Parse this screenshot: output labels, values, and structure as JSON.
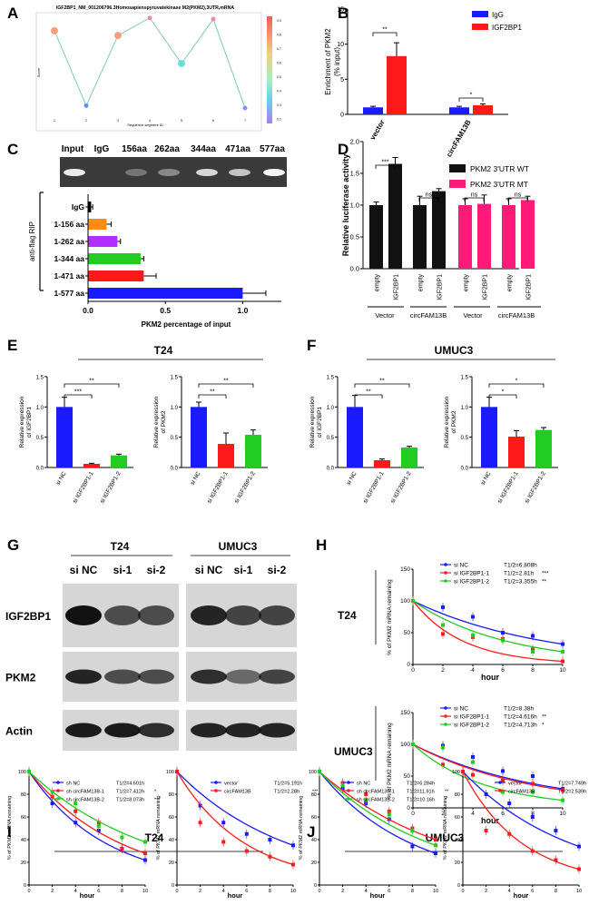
{
  "panels": {
    "A": {
      "letter": "A",
      "title": "IGF2BP1_NM_001206796.3Homosapienspyruvatekinase M2(PKM2),3UTR,mRNA",
      "xlabel": "Sequence segment ID",
      "ylabel": "Score",
      "colorbar_ticks": [
        "0.9",
        "0.8",
        "0.7",
        "0.6",
        "0.5",
        "0.4",
        "0.3",
        "0.2"
      ]
    },
    "B": {
      "letter": "B",
      "ylabel": "Enrichment of PKM2 (% input)",
      "legend": [
        "IgG",
        "IGF2BP1"
      ],
      "groups": [
        "vector",
        "circFAM13B"
      ],
      "sig": [
        "**",
        "*"
      ],
      "yticks": [
        "0",
        "5",
        "10",
        "15"
      ]
    },
    "C": {
      "letter": "C",
      "gel_labels": [
        "Input",
        "IgG",
        "156aa",
        "262aa",
        "344aa",
        "471aa",
        "577aa"
      ],
      "side_label": "anti-flag RIP",
      "xlabel": "PKM2 percentage of input",
      "xticks": [
        "0.0",
        "0.5",
        "1.0"
      ]
    },
    "D": {
      "letter": "D",
      "ylabel": "Relative luciferase activity",
      "legend": [
        "PKM2 3'UTR WT",
        "PKM2 3'UTR MT"
      ],
      "bar_labels": [
        "empty",
        "IGF2BP1",
        "empty",
        "IGF2BP1",
        "empty",
        "IGF2BP1",
        "empty",
        "IGF2BP1"
      ],
      "group_labels": [
        "Vector",
        "circFAM13B",
        "Vector",
        "circFAM13B"
      ],
      "sig": [
        "***",
        "ns",
        "ns",
        "ns"
      ],
      "yticks": [
        "0.0",
        "0.5",
        "1.0",
        "1.5",
        "2.0"
      ]
    },
    "E": {
      "letter": "E",
      "cell": "T24",
      "ylabels": [
        "Relative expression of IGF2BP1",
        "Relative expression of PKM2"
      ],
      "cats": [
        "si NC",
        "si IGF2BP1-1",
        "si IGF2BP1-2"
      ],
      "sig1": [
        "***",
        "**"
      ],
      "sig2": [
        "**",
        "**"
      ],
      "yticks": [
        "0.0",
        "0.5",
        "1.0",
        "1.5"
      ]
    },
    "F": {
      "letter": "F",
      "cell": "UMUC3",
      "ylabels": [
        "Relative expression of IGF2BP1",
        "Relative expression of PKM2"
      ],
      "cats": [
        "si NC",
        "si IGF2BP1-1",
        "si IGF2BP1-2"
      ],
      "sig1": [
        "**",
        "**"
      ],
      "sig2": [
        "*",
        "*"
      ],
      "yticks": [
        "0.0",
        "0.5",
        "1.0",
        "1.5"
      ]
    },
    "G": {
      "letter": "G",
      "cells": [
        "T24",
        "UMUC3"
      ],
      "lanes": [
        "si NC",
        "si-1",
        "si-2",
        "si NC",
        "si-1",
        "si-2"
      ],
      "rows": [
        "IGF2BP1",
        "PKM2",
        "Actin"
      ]
    },
    "H": {
      "letter": "H",
      "rows": [
        "T24",
        "UMUC3"
      ],
      "ylabel": "% of PKM2 mRNA remaining",
      "xlabel": "hour",
      "legend_t24": [
        {
          "name": "si NC",
          "half": "T1/2=6.808h",
          "sig": ""
        },
        {
          "name": "si IGF2BP1-1",
          "half": "T1/2=2.81h",
          "sig": "***"
        },
        {
          "name": "si IGF2BP1-2",
          "half": "T1/2=3.355h",
          "sig": "**"
        }
      ],
      "legend_umuc3": [
        {
          "name": "si NC",
          "half": "T1/2=8.38h",
          "sig": ""
        },
        {
          "name": "si IGF2BP1-1",
          "half": "T1/2=4.616h",
          "sig": "**"
        },
        {
          "name": "si IGF2BP1-2",
          "half": "T1/2=4.713h",
          "sig": "*"
        }
      ],
      "xticks": [
        "0",
        "2",
        "4",
        "6",
        "8",
        "10"
      ],
      "yticks": [
        "0",
        "50",
        "100",
        "150"
      ]
    },
    "I": {
      "letter": "I",
      "cell": "T24",
      "ylabel": "% of PKM2 mRNA remaining",
      "xlabel": "hour",
      "legend_sh": [
        {
          "name": "sh NC",
          "half": "T1/2=4.601h",
          "sig": ""
        },
        {
          "name": "sh circFAM13B-1",
          "half": "T1/2=7.412h",
          "sig": "*"
        },
        {
          "name": "sh circFAM13B-2",
          "half": "T1/2=8.073h",
          "sig": "***"
        }
      ],
      "legend_ov": [
        {
          "name": "vector",
          "half": "T1/2=5.191h",
          "sig": ""
        },
        {
          "name": "circFAM13B",
          "half": "T1/2=2.28h",
          "sig": "***"
        }
      ],
      "xticks": [
        "0",
        "2",
        "4",
        "6",
        "8",
        "10"
      ],
      "yticks": [
        "0",
        "20",
        "40",
        "60",
        "80",
        "100"
      ]
    },
    "J": {
      "letter": "J",
      "cell": "UMUC3",
      "ylabel": "% of PKM2 mRNA remaining",
      "xlabel": "hour",
      "legend_sh": [
        {
          "name": "sh NC",
          "half": "T1/2=6.284h",
          "sig": ""
        },
        {
          "name": "sh circFAM13B-1",
          "half": "T1/2=11.91h",
          "sig": "**"
        },
        {
          "name": "sh circFAM13B-2",
          "half": "T1/2=10.16h",
          "sig": "*"
        }
      ],
      "legend_ov": [
        {
          "name": "vector",
          "half": "T1/2=7.749h",
          "sig": ""
        },
        {
          "name": "circFAM13B",
          "half": "T1/2=2.539h",
          "sig": "***"
        }
      ],
      "xticks": [
        "0",
        "2",
        "4",
        "6",
        "8",
        "10"
      ],
      "yticks": [
        "0",
        "20",
        "40",
        "60",
        "80",
        "100"
      ]
    }
  },
  "colors": {
    "blue": "#1a1aff",
    "red": "#ff1a1a",
    "green": "#22cc22",
    "black": "#111111",
    "pink": "#ff1a7a",
    "orange": "#ff8c1a",
    "purple": "#b030ff"
  },
  "chart_data": [
    {
      "id": "A",
      "type": "line",
      "x": [
        1,
        2,
        3,
        4,
        5,
        6,
        7
      ],
      "values": [
        0.83,
        0.19,
        0.79,
        0.94,
        0.55,
        0.93,
        0.17
      ],
      "ylim": [
        0.1,
        1.0
      ]
    },
    {
      "id": "B",
      "type": "bar",
      "categories": [
        "vector",
        "circFAM13B"
      ],
      "series": [
        {
          "name": "IgG",
          "values": [
            1.0,
            1.0
          ],
          "err": [
            0.15,
            0.15
          ]
        },
        {
          "name": "IGF2BP1",
          "values": [
            8.3,
            1.3
          ],
          "err": [
            1.9,
            0.2
          ]
        }
      ],
      "ylim": [
        0,
        15
      ]
    },
    {
      "id": "C",
      "type": "bar",
      "orientation": "horizontal",
      "categories": [
        "IgG",
        "1-156 aa",
        "1-262 aa",
        "1-344 aa",
        "1-471 aa",
        "1-577 aa"
      ],
      "values": [
        0.02,
        0.12,
        0.19,
        0.34,
        0.36,
        1.0
      ],
      "err": [
        0.01,
        0.03,
        0.02,
        0.02,
        0.08,
        0.15
      ],
      "xlim": [
        0,
        1.25
      ]
    },
    {
      "id": "D",
      "type": "bar",
      "values": [
        1.0,
        1.65,
        1.0,
        1.22,
        1.0,
        1.02,
        1.0,
        1.08
      ],
      "err": [
        0.05,
        0.1,
        0.14,
        0.04,
        0.1,
        0.14,
        0.1,
        0.06
      ],
      "ylim": [
        0,
        2.0
      ]
    },
    {
      "id": "E1",
      "type": "bar",
      "categories": [
        "si NC",
        "si IGF2BP1-1",
        "si IGF2BP1-2"
      ],
      "values": [
        1.0,
        0.06,
        0.2
      ],
      "err": [
        0.16,
        0.01,
        0.02
      ],
      "ylim": [
        0,
        1.5
      ]
    },
    {
      "id": "E2",
      "type": "bar",
      "categories": [
        "si NC",
        "si IGF2BP1-1",
        "si IGF2BP1-2"
      ],
      "values": [
        1.0,
        0.39,
        0.54
      ],
      "err": [
        0.08,
        0.18,
        0.08
      ],
      "ylim": [
        0,
        1.5
      ]
    },
    {
      "id": "F1",
      "type": "bar",
      "categories": [
        "si NC",
        "si IGF2BP1-1",
        "si IGF2BP1-2"
      ],
      "values": [
        1.0,
        0.12,
        0.33
      ],
      "err": [
        0.19,
        0.02,
        0.02
      ],
      "ylim": [
        0,
        1.5
      ]
    },
    {
      "id": "F2",
      "type": "bar",
      "categories": [
        "si NC",
        "si IGF2BP1-1",
        "si IGF2BP1-2"
      ],
      "values": [
        1.0,
        0.51,
        0.62
      ],
      "err": [
        0.16,
        0.1,
        0.04
      ],
      "ylim": [
        0,
        1.5
      ]
    },
    {
      "id": "H-T24",
      "type": "line",
      "x": [
        0,
        2,
        4,
        6,
        8,
        10
      ],
      "series": [
        {
          "name": "si NC",
          "values": [
            100,
            90,
            75,
            50,
            45,
            32
          ]
        },
        {
          "name": "si IGF2BP1-1",
          "values": [
            100,
            48,
            43,
            40,
            24,
            5
          ]
        },
        {
          "name": "si IGF2BP1-2",
          "values": [
            100,
            62,
            46,
            38,
            20,
            20
          ]
        }
      ],
      "ylim": [
        0,
        150
      ]
    },
    {
      "id": "H-UMUC3",
      "type": "line",
      "x": [
        0,
        2,
        4,
        6,
        8,
        10
      ],
      "series": [
        {
          "name": "si NC",
          "values": [
            100,
            98,
            80,
            58,
            50,
            30
          ]
        },
        {
          "name": "si IGF2BP1-1",
          "values": [
            100,
            68,
            52,
            43,
            38,
            28
          ]
        },
        {
          "name": "si IGF2BP1-2",
          "values": [
            100,
            95,
            72,
            25,
            25,
            12
          ]
        }
      ],
      "ylim": [
        0,
        150
      ]
    },
    {
      "id": "I-sh",
      "type": "line",
      "x": [
        0,
        2,
        4,
        6,
        8,
        10
      ],
      "series": [
        {
          "name": "sh NC",
          "values": [
            100,
            72,
            55,
            48,
            32,
            22
          ]
        },
        {
          "name": "sh circFAM13B-1",
          "values": [
            100,
            78,
            65,
            55,
            32,
            28
          ]
        },
        {
          "name": "sh circFAM13B-2",
          "values": [
            100,
            82,
            72,
            52,
            42,
            38
          ]
        }
      ],
      "ylim": [
        0,
        100
      ]
    },
    {
      "id": "I-ov",
      "type": "line",
      "x": [
        0,
        2,
        4,
        6,
        8,
        10
      ],
      "series": [
        {
          "name": "vector",
          "values": [
            100,
            70,
            55,
            45,
            40,
            35
          ]
        },
        {
          "name": "circFAM13B",
          "values": [
            100,
            55,
            38,
            30,
            25,
            18
          ]
        }
      ],
      "ylim": [
        0,
        100
      ]
    },
    {
      "id": "J-sh",
      "type": "line",
      "x": [
        0,
        2,
        4,
        6,
        8,
        10
      ],
      "series": [
        {
          "name": "sh NC",
          "values": [
            100,
            85,
            72,
            58,
            34,
            28
          ]
        },
        {
          "name": "sh circFAM13B-1",
          "values": [
            100,
            90,
            80,
            65,
            50,
            40
          ]
        },
        {
          "name": "sh circFAM13B-2",
          "values": [
            100,
            88,
            75,
            62,
            48,
            35
          ]
        }
      ],
      "ylim": [
        0,
        100
      ]
    },
    {
      "id": "J-ov",
      "type": "line",
      "x": [
        0,
        2,
        4,
        6,
        8,
        10
      ],
      "series": [
        {
          "name": "vector",
          "values": [
            100,
            80,
            72,
            60,
            48,
            34
          ]
        },
        {
          "name": "circFAM13B",
          "values": [
            100,
            48,
            45,
            30,
            22,
            14
          ]
        }
      ],
      "ylim": [
        0,
        100
      ]
    }
  ]
}
